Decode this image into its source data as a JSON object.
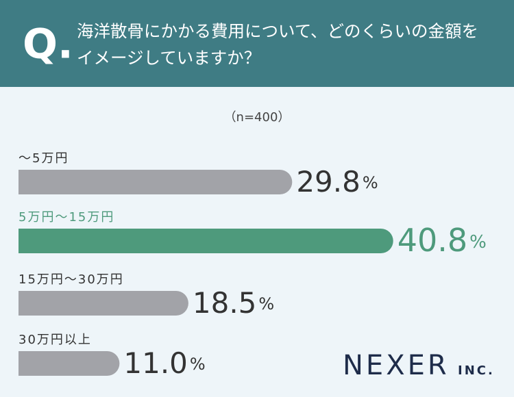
{
  "chart_data": {
    "type": "hbar",
    "title_prefix": "Q.",
    "title": "海洋散骨にかかる費用について、どのくらいの金額をイメージしていますか？",
    "subtitle": "（n=400）",
    "categories": [
      "～5万円",
      "5万円～15万円",
      "15万円～30万円",
      "30万円以上"
    ],
    "values": [
      29.8,
      40.8,
      18.5,
      11.0
    ],
    "value_labels": [
      "29.8%",
      "40.8%",
      "18.5%",
      "11.0%"
    ],
    "colors": [
      "#a2a3a8",
      "#4e9a7c",
      "#a2a3a8",
      "#a2a3a8"
    ],
    "logo": "NEXER",
    "logo_suffix": "INC."
  }
}
